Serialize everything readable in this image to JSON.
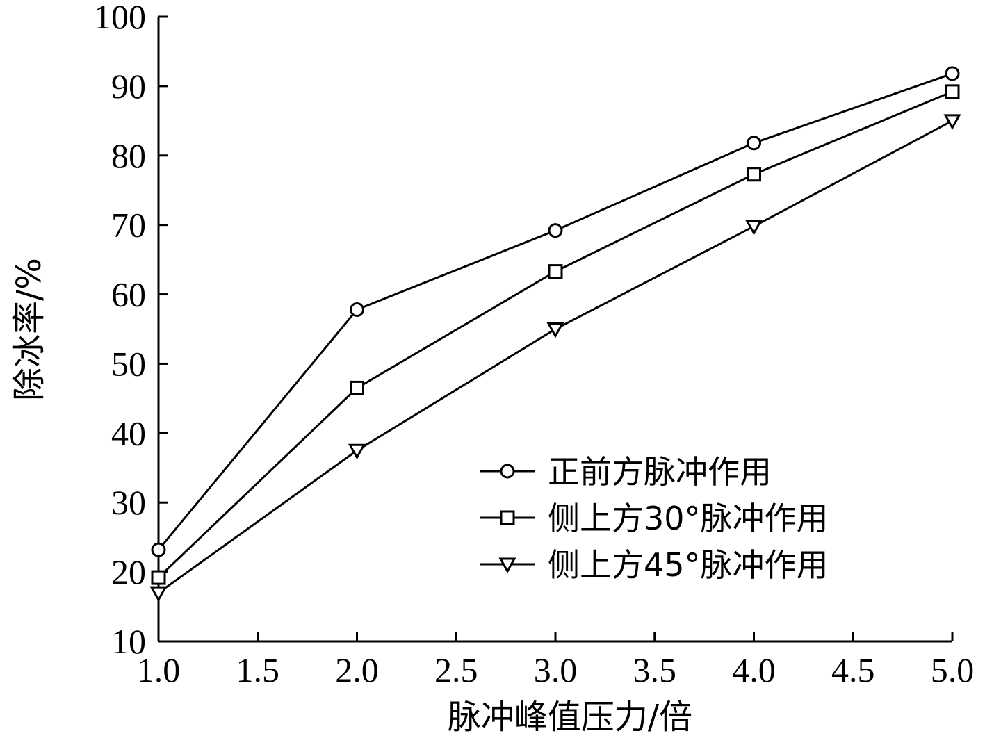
{
  "chart_data": {
    "type": "line",
    "xlabel": "脉冲峰值压力/倍",
    "ylabel": "除冰率/%",
    "xlim": [
      1.0,
      5.0
    ],
    "ylim": [
      10,
      100
    ],
    "x_ticks": [
      "1.0",
      "1.5",
      "2.0",
      "2.5",
      "3.0",
      "3.5",
      "4.0",
      "4.5",
      "5.0"
    ],
    "y_ticks": [
      "10",
      "20",
      "30",
      "40",
      "50",
      "60",
      "70",
      "80",
      "90",
      "100"
    ],
    "x": [
      1.0,
      2.0,
      3.0,
      4.0,
      5.0
    ],
    "legend_position": "lower-right",
    "grid": false,
    "series": [
      {
        "name": "正前方脉冲作用",
        "marker": "circle",
        "values": [
          23.2,
          57.8,
          69.2,
          81.8,
          91.8
        ]
      },
      {
        "name": "侧上方30°脉冲作用",
        "marker": "square",
        "values": [
          19.2,
          46.5,
          63.3,
          77.3,
          89.2
        ]
      },
      {
        "name": "侧上方45°脉冲作用",
        "marker": "triangle-down",
        "values": [
          17.0,
          37.5,
          55.0,
          69.8,
          85.0
        ]
      }
    ]
  }
}
